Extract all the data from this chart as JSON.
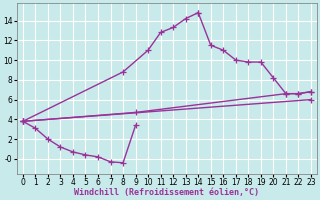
{
  "background_color": "#c8eaea",
  "grid_color": "#ffffff",
  "line_color": "#993399",
  "marker": "+",
  "markersize": 4,
  "linewidth": 1.0,
  "xlabel": "Windchill (Refroidissement éolien,°C)",
  "xlabel_fontsize": 6,
  "xticks": [
    0,
    1,
    2,
    3,
    4,
    5,
    6,
    7,
    8,
    9,
    10,
    11,
    12,
    13,
    14,
    15,
    16,
    17,
    18,
    19,
    20,
    21,
    22,
    23
  ],
  "ytick_vals": [
    0,
    2,
    4,
    6,
    8,
    10,
    12,
    14
  ],
  "ytick_labels": [
    "-0",
    "2",
    "4",
    "6",
    "8",
    "10",
    "12",
    "14"
  ],
  "ylim": [
    -1.5,
    15.8
  ],
  "xlim": [
    -0.5,
    23.5
  ],
  "tick_fontsize": 5.5,
  "curve1_x": [
    0,
    1,
    2,
    3,
    4,
    5,
    6,
    7,
    8,
    9
  ],
  "curve1_y": [
    3.8,
    3.1,
    2.0,
    1.2,
    0.7,
    0.4,
    0.2,
    -0.3,
    -0.4,
    3.4
  ],
  "curve2_x": [
    0,
    8,
    10,
    11,
    12,
    13,
    14
  ],
  "curve2_y": [
    3.8,
    8.8,
    11.0,
    12.8,
    13.3,
    14.2,
    14.8
  ],
  "curve3_x": [
    14,
    15,
    16,
    17,
    18,
    19,
    20,
    21,
    22,
    23
  ],
  "curve3_y": [
    14.8,
    11.5,
    11.0,
    10.0,
    9.8,
    9.8,
    8.2,
    6.6,
    6.6,
    6.8
  ],
  "line1_x": [
    0,
    9,
    21,
    22,
    23
  ],
  "line1_y": [
    3.8,
    4.7,
    6.6,
    6.6,
    6.8
  ],
  "line2_x": [
    0,
    23
  ],
  "line2_y": [
    3.8,
    6.0
  ]
}
